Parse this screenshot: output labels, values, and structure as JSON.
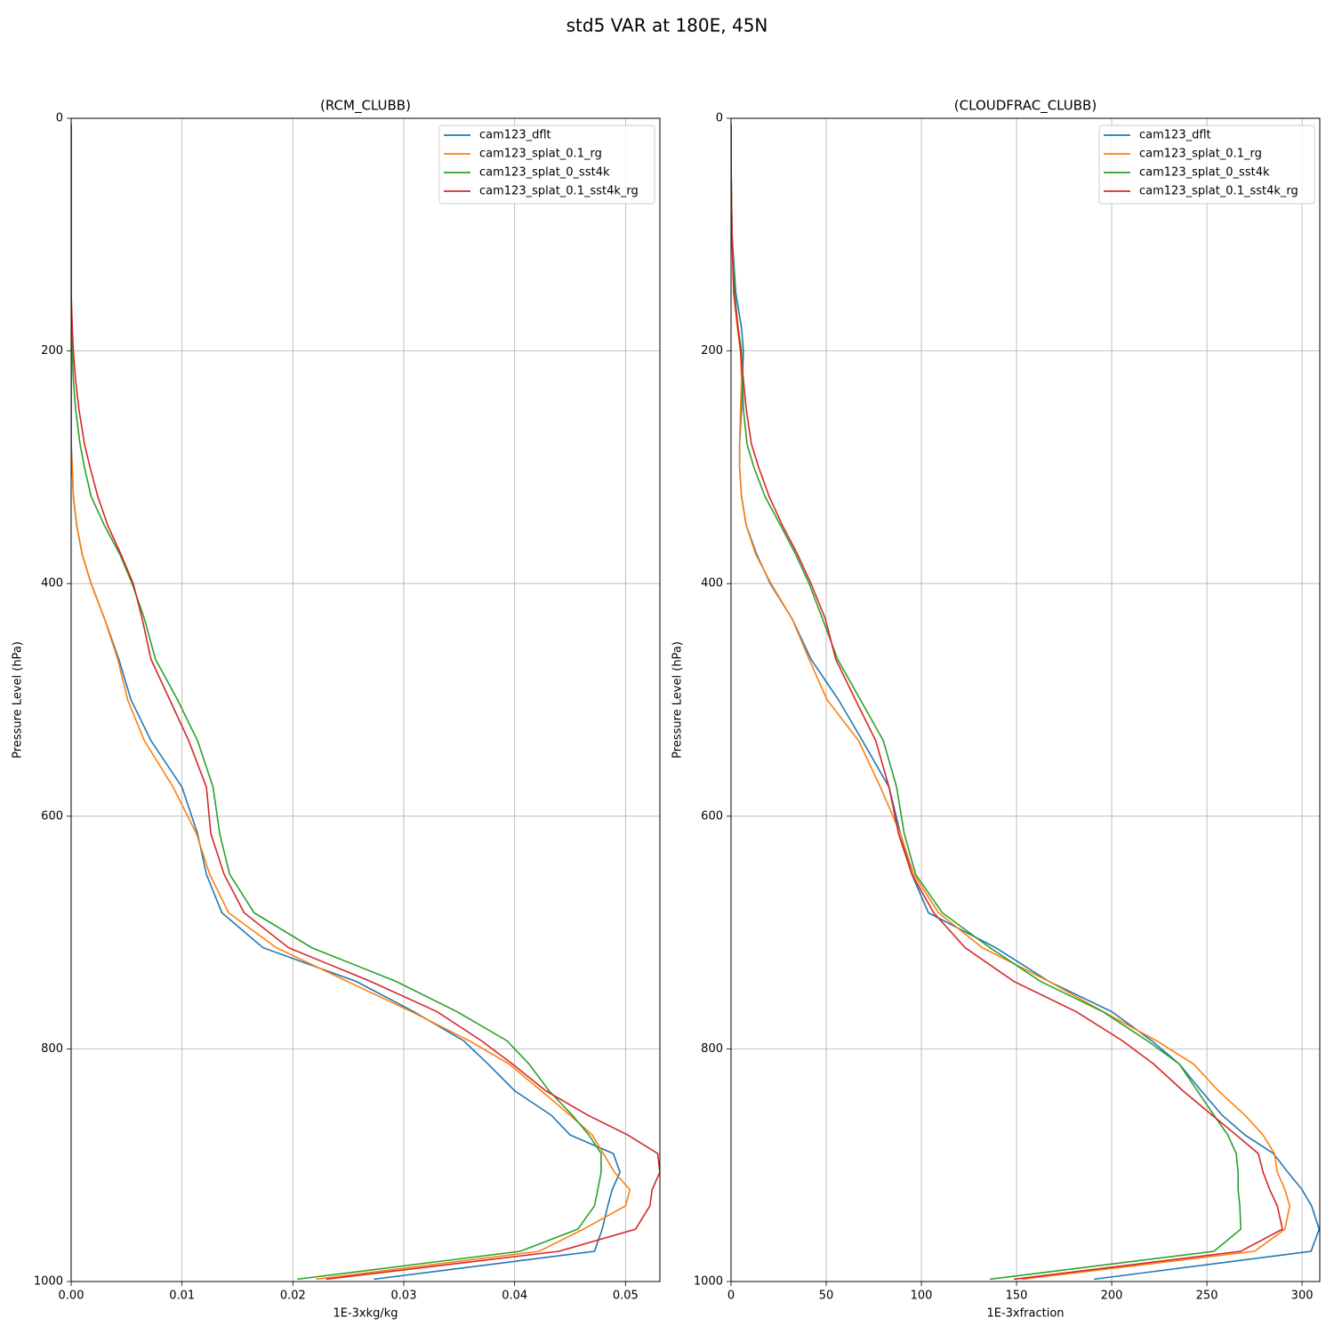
{
  "title": "std5 VAR at 180E, 45N",
  "chart_data": [
    {
      "type": "line",
      "title": "(RCM_CLUBB)",
      "x_label": "1E-3xkg/kg",
      "y_label": "Pressure Level (hPa)",
      "xlim": [
        0,
        0.0531
      ],
      "ylim": [
        1000,
        0
      ],
      "xticks": [
        {
          "value": 0,
          "label": "0.00"
        },
        {
          "value": 0.01,
          "label": "0.01"
        },
        {
          "value": 0.02,
          "label": "0.02"
        },
        {
          "value": 0.03,
          "label": "0.03"
        },
        {
          "value": 0.04,
          "label": "0.04"
        },
        {
          "value": 0.05,
          "label": "0.05"
        }
      ],
      "yticks": [
        0,
        200,
        400,
        600,
        800,
        1000
      ],
      "grid": true,
      "legend": "upper right",
      "y": [
        5,
        50,
        100,
        150,
        180,
        200,
        225,
        250,
        280,
        300,
        325,
        350,
        375,
        400,
        430,
        465,
        500,
        535,
        575,
        615,
        650,
        683,
        713,
        742,
        768,
        793,
        813,
        836,
        857,
        874,
        890,
        906,
        921,
        935,
        955,
        974,
        998
      ],
      "series": [
        {
          "name": "cam123_dflt",
          "color": "#1f77b4",
          "values": [
            0,
            0,
            0,
            0,
            0,
            0,
            0,
            0,
            0,
            0.0001,
            0.0002,
            0.0005,
            0.001,
            0.0018,
            0.003,
            0.0043,
            0.0054,
            0.0072,
            0.01,
            0.0114,
            0.0122,
            0.0136,
            0.0173,
            0.0257,
            0.0309,
            0.0354,
            0.0376,
            0.04,
            0.0433,
            0.045,
            0.0489,
            0.0495,
            0.0488,
            0.0484,
            0.0479,
            0.0472,
            0.0273
          ]
        },
        {
          "name": "cam123_splat_0.1_rg",
          "color": "#ff7f0e",
          "values": [
            0,
            0,
            0,
            0,
            0,
            0,
            0,
            0,
            0,
            0.0001,
            0.0002,
            0.0005,
            0.001,
            0.0018,
            0.003,
            0.0042,
            0.0051,
            0.0066,
            0.0092,
            0.0113,
            0.0125,
            0.0142,
            0.0185,
            0.0249,
            0.0307,
            0.0359,
            0.0395,
            0.0424,
            0.045,
            0.047,
            0.048,
            0.049,
            0.0504,
            0.05,
            0.0462,
            0.0422,
            0.0221
          ]
        },
        {
          "name": "cam123_splat_0_sst4k",
          "color": "#2ca02c",
          "values": [
            0,
            0,
            0,
            0,
            0,
            0.0001,
            0.0002,
            0.0004,
            0.0008,
            0.0012,
            0.0018,
            0.003,
            0.0044,
            0.0055,
            0.0066,
            0.0076,
            0.0096,
            0.0114,
            0.0128,
            0.0134,
            0.0143,
            0.0165,
            0.0217,
            0.0293,
            0.0348,
            0.0393,
            0.0413,
            0.0431,
            0.0452,
            0.0467,
            0.0478,
            0.0478,
            0.0475,
            0.0472,
            0.0457,
            0.0405,
            0.0204
          ]
        },
        {
          "name": "cam123_splat_0.1_sst4k_rg",
          "color": "#d62728",
          "values": [
            0,
            0,
            0,
            0,
            0.0001,
            0.0002,
            0.0004,
            0.0007,
            0.0012,
            0.0017,
            0.0024,
            0.0033,
            0.0045,
            0.0056,
            0.0064,
            0.0072,
            0.0089,
            0.0106,
            0.0122,
            0.0126,
            0.0138,
            0.0156,
            0.0196,
            0.027,
            0.033,
            0.037,
            0.0398,
            0.0428,
            0.0466,
            0.0502,
            0.0529,
            0.0531,
            0.0524,
            0.0522,
            0.0509,
            0.044,
            0.023
          ]
        }
      ]
    },
    {
      "type": "line",
      "title": "(CLOUDFRAC_CLUBB)",
      "x_label": "1E-3xfraction",
      "y_label": "Pressure Level (hPa)",
      "xlim": [
        0,
        309.3
      ],
      "ylim": [
        1000,
        0
      ],
      "xticks": [
        0,
        50,
        100,
        150,
        200,
        250,
        300
      ],
      "yticks": [
        0,
        200,
        400,
        600,
        800,
        1000
      ],
      "grid": true,
      "legend": "upper right",
      "y": [
        5,
        50,
        100,
        150,
        180,
        200,
        225,
        250,
        280,
        300,
        325,
        350,
        375,
        400,
        430,
        465,
        500,
        535,
        575,
        615,
        650,
        683,
        713,
        742,
        768,
        793,
        813,
        836,
        857,
        874,
        890,
        906,
        921,
        935,
        955,
        974,
        998
      ],
      "series": [
        {
          "name": "cam123_dflt",
          "color": "#1f77b4",
          "values": [
            0,
            0.1,
            0.5,
            2.5,
            5.5,
            6.5,
            6,
            5.5,
            4.5,
            4.5,
            5.5,
            8,
            13.5,
            20.6,
            32,
            42,
            56.5,
            69,
            83,
            89,
            95,
            103.7,
            139,
            167,
            200,
            221,
            235.5,
            247,
            258,
            270,
            285,
            292.5,
            300,
            305,
            309,
            304.7,
            190.7
          ]
        },
        {
          "name": "cam123_splat_0.1_rg",
          "color": "#ff7f0e",
          "values": [
            0,
            0.1,
            0.5,
            1.4,
            3.3,
            5,
            5.5,
            5,
            4.5,
            4.5,
            5.5,
            8,
            13,
            21,
            32,
            41,
            50.5,
            67,
            78.5,
            89,
            96,
            109,
            132,
            167,
            195.5,
            223.5,
            243,
            256,
            270,
            279.5,
            285.5,
            287,
            291,
            293.5,
            291,
            275,
            153
          ]
        },
        {
          "name": "cam123_splat_0_sst4k",
          "color": "#2ca02c",
          "values": [
            0,
            0.1,
            0.5,
            1.9,
            3.7,
            5.5,
            6,
            6.5,
            8.4,
            12,
            17.8,
            26,
            34,
            41,
            48,
            56,
            68,
            80,
            87,
            91,
            97,
            111,
            136,
            162.6,
            195.3,
            218.7,
            235.5,
            245,
            253.7,
            261,
            265.4,
            266.4,
            266.4,
            267.3,
            267.8,
            253.7,
            136
          ]
        },
        {
          "name": "cam123_splat_0.1_sst4k_rg",
          "color": "#d62728",
          "values": [
            0,
            0.1,
            0.5,
            1.4,
            3.7,
            5,
            6.5,
            8,
            10.7,
            14.5,
            20,
            27,
            35,
            42,
            49.5,
            55,
            65.4,
            76,
            83,
            88,
            95,
            106.5,
            123,
            148.6,
            181.3,
            205.6,
            222,
            237.4,
            252.8,
            265.4,
            277,
            279.5,
            283,
            287,
            289.7,
            267.8,
            148.6
          ]
        }
      ]
    }
  ]
}
